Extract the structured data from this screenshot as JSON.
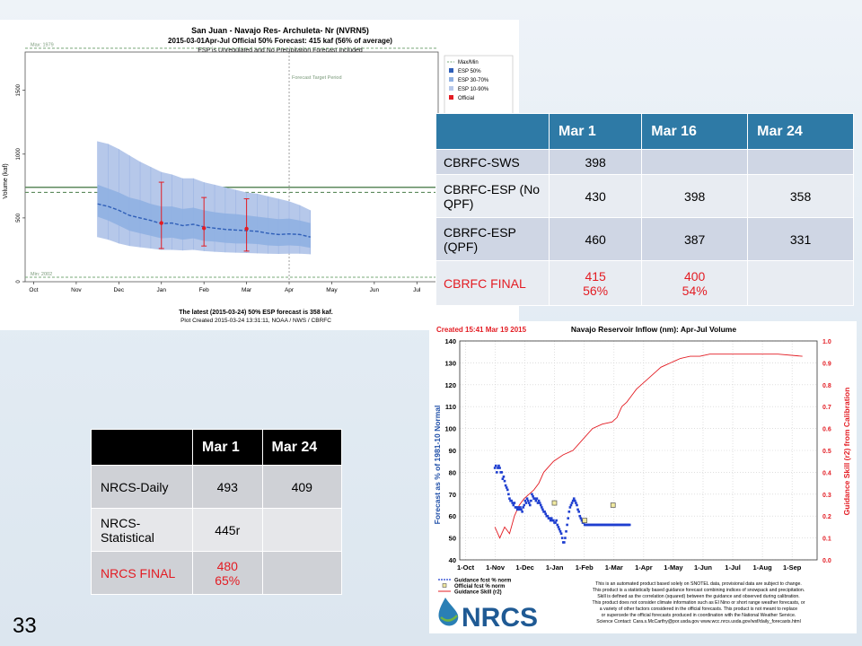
{
  "slide_number": "33",
  "chart_data": [
    {
      "type": "area",
      "title": "San Juan - Navajo Res- Archuleta- Nr (NVRN5)",
      "subtitle": "2015-03-01Apr-Jul Official 50% Forecast: 415 kaf (56% of average)",
      "subtitle2": "ESP is Unregulated and No Precipitation Forecast Included",
      "ylabel": "Volume (kaf)",
      "ylim": [
        0,
        1800
      ],
      "yticks": [
        0,
        500,
        1000,
        1500
      ],
      "x_ticks": [
        "Oct",
        "Nov",
        "Dec",
        "Jan",
        "Feb",
        "Mar",
        "Apr",
        "May",
        "Jun",
        "Jul"
      ],
      "max_label": "Max: 1979",
      "min_label": "Min: 2002",
      "max_value": 1830,
      "min_value": 35,
      "average_line": 740,
      "average_line2": 700,
      "forecast_period_label": "Forecast Target Period",
      "legend": [
        "Max/Min",
        "ESP 50%",
        "ESP 30-70%",
        "ESP 10-90%",
        "Official"
      ],
      "colors": {
        "esp50": "#2f5fb8",
        "esp3070": "#8fb0e2",
        "esp1090": "#b6c8ea",
        "official": "#e31c23",
        "maxmin": "#7aa87a"
      },
      "esp": {
        "x": [
          1.5,
          1.75,
          2.0,
          2.25,
          2.5,
          2.75,
          3.0,
          3.25,
          3.5,
          3.75,
          4.0,
          4.25,
          4.5,
          4.75,
          5.0,
          5.25,
          5.5,
          5.75,
          6.0,
          6.25,
          6.5
        ],
        "p50": [
          610,
          590,
          560,
          520,
          500,
          480,
          455,
          460,
          440,
          450,
          430,
          420,
          410,
          405,
          400,
          395,
          380,
          370,
          375,
          370,
          350
        ],
        "p30": [
          510,
          480,
          440,
          400,
          380,
          360,
          340,
          345,
          330,
          340,
          320,
          315,
          305,
          300,
          300,
          295,
          285,
          280,
          285,
          280,
          265
        ],
        "p70": [
          760,
          730,
          700,
          660,
          640,
          610,
          590,
          590,
          570,
          580,
          560,
          545,
          535,
          530,
          520,
          510,
          500,
          490,
          495,
          480,
          460
        ],
        "p10": [
          350,
          330,
          300,
          280,
          270,
          260,
          250,
          250,
          245,
          250,
          240,
          235,
          230,
          228,
          225,
          222,
          220,
          218,
          220,
          220,
          215
        ],
        "p90": [
          1100,
          1080,
          1040,
          990,
          940,
          900,
          860,
          840,
          810,
          810,
          780,
          760,
          740,
          720,
          700,
          690,
          670,
          650,
          630,
          600,
          560
        ]
      },
      "official": [
        {
          "x": 3.0,
          "y": 460,
          "lo": 260,
          "hi": 780
        },
        {
          "x": 4.0,
          "y": 420,
          "lo": 280,
          "hi": 660
        },
        {
          "x": 5.0,
          "y": 415,
          "lo": 240,
          "hi": 650
        }
      ],
      "footer1": "The latest (2015-03-24) 50% ESP forecast is 358 kaf.",
      "footer2": "Plot Created 2015-03-24 13:31:11, NOAA / NWS / CBRFC"
    },
    {
      "type": "line",
      "title": "Navajo Reservoir Inflow (nm): Apr-Jul Volume",
      "created": "Created 15:41 Mar 19 2015",
      "ylabel": "Forecast as % of 1981-10 Normal",
      "y2label": "Guidance Skill (r2) from Calibration",
      "ylim": [
        40,
        140
      ],
      "yticks": [
        40,
        50,
        60,
        70,
        80,
        90,
        100,
        110,
        120,
        130,
        140
      ],
      "y2lim": [
        0,
        1.0
      ],
      "y2ticks": [
        "0.0",
        "0.1",
        "0.2",
        "0.3",
        "0.4",
        "0.5",
        "0.6",
        "0.7",
        "0.8",
        "0.9",
        "1.0"
      ],
      "x_ticks": [
        "1-Oct",
        "1-Nov",
        "1-Dec",
        "1-Jan",
        "1-Feb",
        "1-Mar",
        "1-Apr",
        "1-May",
        "1-Jun",
        "1-Jul",
        "1-Aug",
        "1-Sep"
      ],
      "legend": [
        "Guidance fcst % norm",
        "Official fcst % norm",
        "Guidance Skill (r2)"
      ],
      "series": [
        {
          "name": "Guidance fcst % norm",
          "x": [
            30,
            31,
            32,
            33,
            34,
            35,
            36,
            37,
            38,
            39,
            40,
            41,
            42,
            43,
            44,
            45,
            46,
            47,
            48,
            49,
            50,
            51,
            52,
            53,
            54,
            55,
            56,
            57,
            58,
            59,
            60,
            61,
            62,
            63,
            64,
            65,
            66,
            67,
            68,
            69,
            70,
            71,
            72,
            73,
            74,
            75,
            76,
            77,
            78,
            79,
            80,
            81,
            82,
            83,
            84,
            85,
            86,
            87,
            88,
            89,
            90,
            91,
            92,
            93,
            94,
            95,
            96,
            97,
            98,
            99,
            100,
            101,
            102,
            103,
            104,
            105,
            106,
            107,
            108,
            109,
            110,
            111,
            112,
            113,
            114,
            115,
            116,
            117,
            118,
            119,
            120,
            121,
            122,
            123,
            124,
            125,
            126,
            127,
            128,
            129,
            130,
            131,
            132,
            133,
            134,
            135,
            136,
            137,
            138,
            139,
            140,
            141,
            142,
            143,
            144,
            145,
            146,
            147,
            148,
            149,
            150,
            151,
            152,
            153,
            154,
            155,
            156,
            157,
            158,
            159,
            160,
            161,
            162,
            163,
            164,
            165,
            166,
            167,
            168
          ],
          "y": [
            82,
            83,
            80,
            82,
            83,
            82,
            80,
            80,
            77,
            78,
            76,
            74,
            73,
            72,
            70,
            68,
            67,
            67,
            66,
            65,
            66,
            64,
            64,
            63,
            64,
            63,
            64,
            63,
            62,
            64,
            65,
            67,
            66,
            68,
            67,
            66,
            65,
            67,
            70,
            69,
            68,
            68,
            67,
            68,
            66,
            67,
            66,
            65,
            64,
            63,
            62,
            62,
            61,
            60,
            60,
            59,
            59,
            58,
            59,
            58,
            58,
            57,
            57,
            58,
            56,
            55,
            54,
            53,
            52,
            50,
            48,
            48,
            50,
            53,
            56,
            59,
            62,
            64,
            65,
            66,
            67,
            68,
            67,
            66,
            65,
            63,
            62,
            60,
            59,
            58,
            57,
            57,
            56,
            56,
            56,
            56,
            56,
            56,
            56,
            56,
            56,
            56,
            56,
            56,
            56,
            56,
            56,
            56,
            56,
            56,
            56,
            56,
            56,
            56,
            56,
            56,
            56,
            56,
            56,
            56,
            56,
            56,
            56,
            56,
            56,
            56,
            56,
            56,
            56,
            56,
            56,
            56,
            56,
            56,
            56,
            56,
            56,
            56,
            56
          ]
        },
        {
          "name": "Official fcst % norm",
          "x": [
            91,
            122,
            151
          ],
          "y": [
            66,
            58,
            65
          ]
        },
        {
          "name": "Guidance Skill (r2)",
          "x": [
            30,
            35,
            40,
            45,
            50,
            55,
            60,
            65,
            70,
            75,
            80,
            90,
            100,
            110,
            120,
            130,
            140,
            150,
            155,
            160,
            165,
            170,
            175,
            180,
            185,
            190,
            195,
            200,
            205,
            210,
            215,
            220,
            230,
            240,
            250,
            260,
            280,
            300,
            320,
            345
          ],
          "y": [
            0.15,
            0.1,
            0.15,
            0.12,
            0.2,
            0.25,
            0.28,
            0.3,
            0.32,
            0.35,
            0.4,
            0.45,
            0.48,
            0.5,
            0.55,
            0.6,
            0.62,
            0.63,
            0.65,
            0.7,
            0.72,
            0.75,
            0.78,
            0.8,
            0.82,
            0.84,
            0.86,
            0.88,
            0.89,
            0.9,
            0.91,
            0.92,
            0.93,
            0.93,
            0.94,
            0.94,
            0.94,
            0.94,
            0.94,
            0.93
          ]
        }
      ],
      "footnote": [
        "This is an automated product based solely on SNOTEL data, provisional data are subject to change.",
        "This product is a statistically based guidance forecast combining indices of snowpack and precipitation.",
        "Skill is defined as the correlation (squared) between the guidance and observed during calibration.",
        "This product does not consider climate information such as El Nino or short range weather forecasts, or",
        "a variety of other factors considered in the official forecasts. This product is not meant to replace",
        "or supercede the official forecasts produced in coordination with the National Weather Service.",
        "Science Contact: Cara.s.McCarthy@por.usda.gov www.wcc.nrcs.usda.gov/wsf/daily_forecasts.html"
      ],
      "logo_text": "NRCS"
    }
  ],
  "cbrfc_table": {
    "headers": [
      "",
      "Mar 1",
      "Mar 16",
      "Mar 24"
    ],
    "rows": [
      [
        "CBRFC-SWS",
        "398",
        "",
        ""
      ],
      [
        "CBRFC-ESP (No QPF)",
        "430",
        "398",
        "358"
      ],
      [
        "CBRFC-ESP (QPF)",
        "460",
        "387",
        "331"
      ],
      [
        "CBRFC FINAL",
        "415\n56%",
        "400\n54%",
        ""
      ]
    ]
  },
  "nrcs_table": {
    "headers": [
      "",
      "Mar 1",
      "Mar 24"
    ],
    "rows": [
      [
        "NRCS-Daily",
        "493",
        "409"
      ],
      [
        "NRCS-Statistical",
        "445r",
        ""
      ],
      [
        "NRCS FINAL",
        "480\n65%",
        ""
      ]
    ]
  }
}
